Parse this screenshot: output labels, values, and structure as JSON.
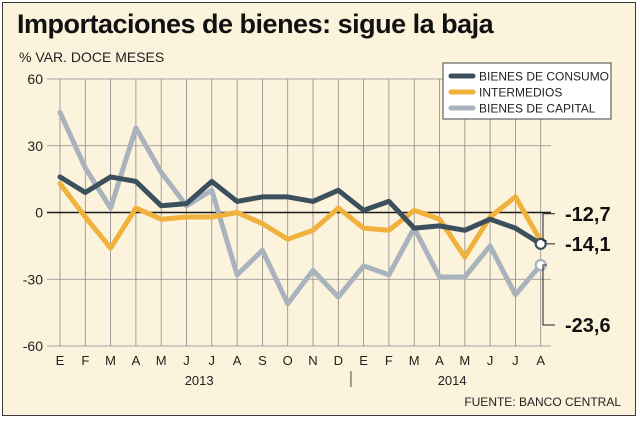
{
  "title": "Importaciones de bienes: sigue la baja",
  "subtitle": "% VAR. DOCE MESES",
  "source": "FUENTE: BANCO CENTRAL",
  "chart_data": {
    "type": "line",
    "categories": [
      "E",
      "F",
      "M",
      "A",
      "M",
      "J",
      "J",
      "A",
      "S",
      "O",
      "N",
      "D",
      "E",
      "F",
      "M",
      "A",
      "M",
      "J",
      "J",
      "A"
    ],
    "years": [
      {
        "label": "2013",
        "start": 0,
        "end": 11
      },
      {
        "label": "2014",
        "start": 12,
        "end": 19
      }
    ],
    "ylim": [
      -60,
      60
    ],
    "yticks": [
      60,
      30,
      0,
      -30,
      -60
    ],
    "grid": true,
    "legend_position": "top-right",
    "series": [
      {
        "name": "BIENES DE CONSUMO",
        "color": "#3c4f5d",
        "values": [
          16,
          9,
          16,
          14,
          3,
          4,
          14,
          5,
          7,
          7,
          5,
          10,
          1,
          5,
          -7,
          -6,
          -8,
          -3,
          -7,
          -14.1
        ]
      },
      {
        "name": "INTERMEDIOS",
        "color": "#f0b23c",
        "values": [
          13,
          -2,
          -16,
          2,
          -3,
          -2,
          -2,
          0,
          -5,
          -12,
          -8,
          2,
          -7,
          -8,
          1,
          -3,
          -20,
          -2,
          7,
          -12.7
        ]
      },
      {
        "name": "BIENES DE CAPITAL",
        "color": "#a9b3bd",
        "values": [
          45,
          20,
          2,
          38,
          18,
          3,
          10,
          -28,
          -17,
          -41,
          -26,
          -38,
          -24,
          -28,
          -7,
          -29,
          -29,
          -15,
          -37,
          -23.6
        ]
      }
    ],
    "annotations": [
      {
        "text": "-12,7",
        "series": 1
      },
      {
        "text": "-14,1",
        "series": 0
      },
      {
        "text": "-23,6",
        "series": 2
      }
    ]
  }
}
